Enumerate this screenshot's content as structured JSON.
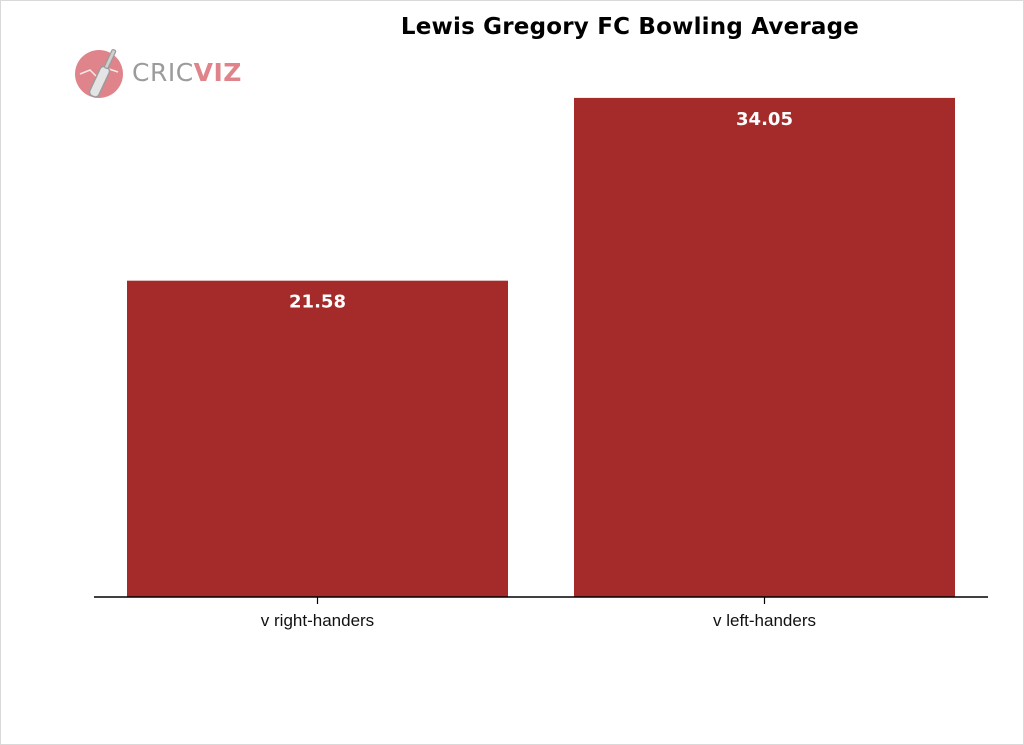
{
  "chart_data": {
    "type": "bar",
    "title": "Lewis Gregory FC Bowling Average",
    "categories": [
      "v right-handers",
      "v left-handers"
    ],
    "values": [
      21.58,
      34.05
    ],
    "value_labels": [
      "21.58",
      "34.05"
    ],
    "xlabel": "",
    "ylabel": "",
    "ylim": [
      0,
      38
    ],
    "grid": false,
    "legend": "none",
    "bar_color": "#a52a2a"
  },
  "logo": {
    "text_part1": "CRIC",
    "text_part2": "VIZ",
    "icon": "cricket-bat-ball-icon",
    "accent": "#e0848c"
  }
}
